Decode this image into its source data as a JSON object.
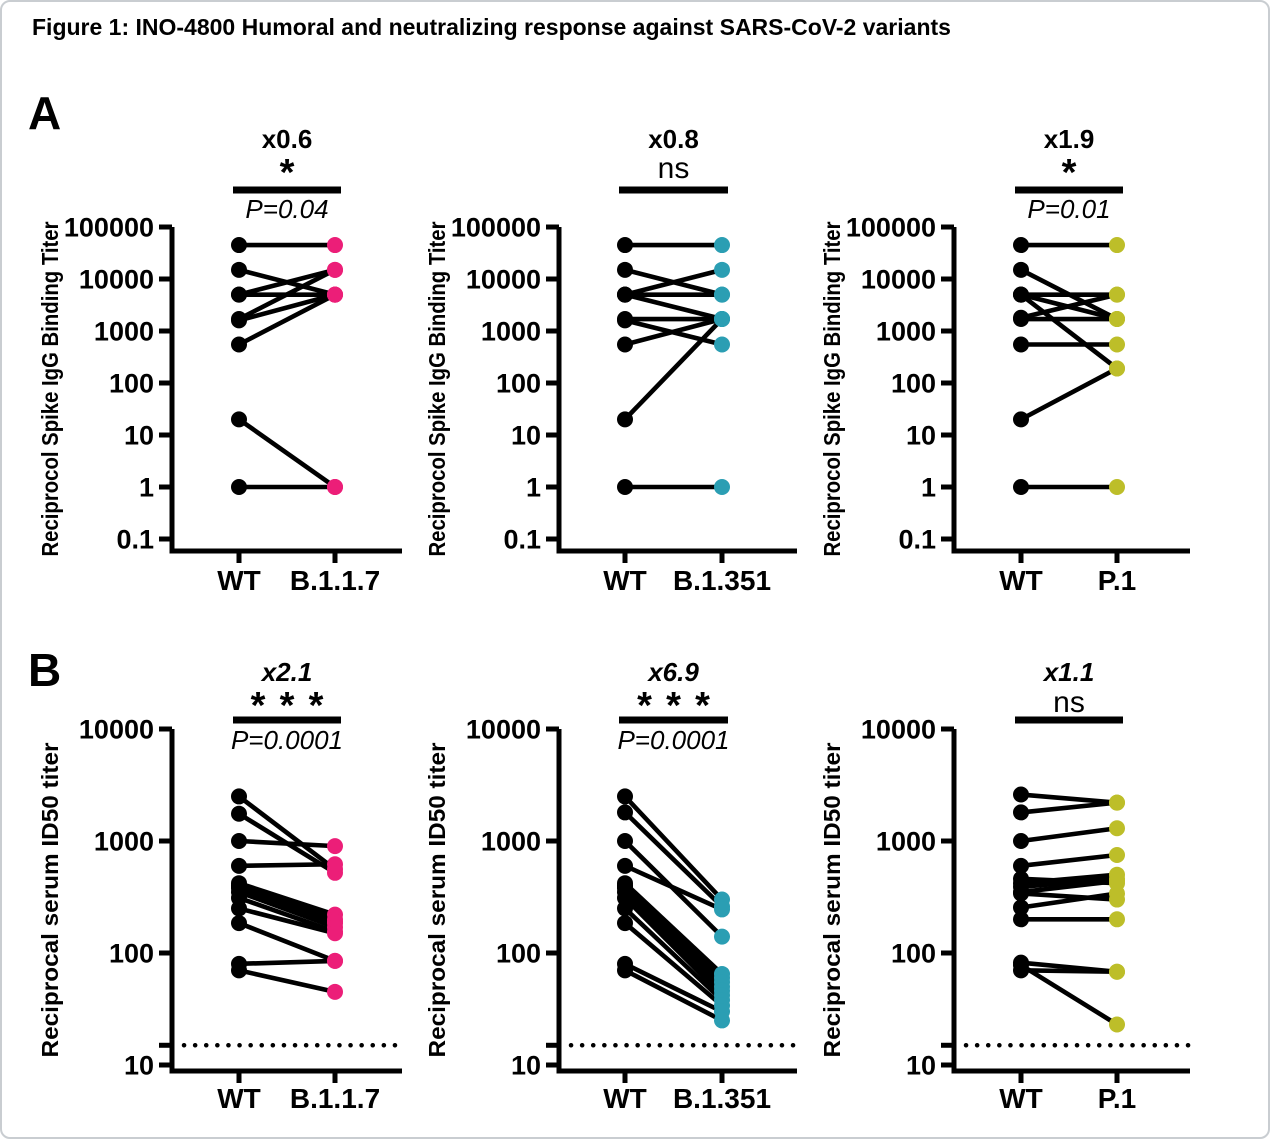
{
  "figure_title": "Figure 1: INO-4800 Humoral and neutralizing response against SARS-CoV-2 variants",
  "sections": {
    "a": "A",
    "b": "B"
  },
  "colors": {
    "wt_point": "#000000",
    "b117_point": "#EC1E78",
    "b1351_point": "#2B9EB3",
    "p1_point": "#BDBE29",
    "line": "#000000"
  },
  "chart_data": [
    {
      "id": "A-B.1.1.7",
      "row": "A",
      "type": "scatter",
      "subtype": "paired-dot-plot",
      "ylabel": "Reciprocol Spike IgG Binding Titer",
      "ylim": [
        0.1,
        100000
      ],
      "yticks": [
        100000,
        10000,
        1000,
        100,
        10,
        1,
        0.1
      ],
      "categories": [
        "WT",
        "B.1.1.7"
      ],
      "variant_color": "#EC1E78",
      "annotations": {
        "fold": "x0.6",
        "significance": "*",
        "p_value": "P=0.04"
      },
      "pairs": [
        [
          45000,
          45000
        ],
        [
          15000,
          5000
        ],
        [
          5000,
          15000
        ],
        [
          5000,
          5000
        ],
        [
          1700,
          15000
        ],
        [
          1600,
          5000
        ],
        [
          550,
          5000
        ],
        [
          20,
          1
        ],
        [
          1,
          1
        ]
      ],
      "lod": null
    },
    {
      "id": "A-B.1.351",
      "row": "A",
      "type": "scatter",
      "subtype": "paired-dot-plot",
      "ylabel": "Reciprocol Spike IgG Binding Titer",
      "ylim": [
        0.1,
        100000
      ],
      "yticks": [
        100000,
        10000,
        1000,
        100,
        10,
        1,
        0.1
      ],
      "categories": [
        "WT",
        "B.1.351"
      ],
      "variant_color": "#2B9EB3",
      "annotations": {
        "fold": "x0.8",
        "significance": "ns",
        "p_value": null
      },
      "pairs": [
        [
          45000,
          45000
        ],
        [
          15000,
          5000
        ],
        [
          5000,
          15000
        ],
        [
          5000,
          5000
        ],
        [
          5000,
          1700
        ],
        [
          1700,
          1700
        ],
        [
          1600,
          550
        ],
        [
          550,
          1700
        ],
        [
          20,
          1700
        ],
        [
          1,
          1
        ]
      ],
      "lod": null
    },
    {
      "id": "A-P.1",
      "row": "A",
      "type": "scatter",
      "subtype": "paired-dot-plot",
      "ylabel": "Reciprocol Spike IgG Binding Titer",
      "ylim": [
        0.1,
        100000
      ],
      "yticks": [
        100000,
        10000,
        1000,
        100,
        10,
        1,
        0.1
      ],
      "categories": [
        "WT",
        "P.1"
      ],
      "variant_color": "#BDBE29",
      "annotations": {
        "fold": "x1.9",
        "significance": "*",
        "p_value": "P=0.01"
      },
      "pairs": [
        [
          45000,
          45000
        ],
        [
          15000,
          1700
        ],
        [
          5000,
          5000
        ],
        [
          5000,
          1700
        ],
        [
          5000,
          190
        ],
        [
          1800,
          5000
        ],
        [
          1700,
          1700
        ],
        [
          550,
          550
        ],
        [
          20,
          190
        ],
        [
          1,
          1
        ]
      ],
      "lod": null
    },
    {
      "id": "B-B.1.1.7",
      "row": "B",
      "type": "scatter",
      "subtype": "paired-dot-plot",
      "ylabel": "Reciprocal serum ID50 titer",
      "ylim": [
        10,
        10000
      ],
      "yticks": [
        10000,
        1000,
        100,
        10
      ],
      "categories": [
        "WT",
        "B.1.1.7"
      ],
      "variant_color": "#EC1E78",
      "annotations": {
        "fold": "x2.1",
        "significance": "***",
        "p_value": "P=0.0001"
      },
      "pairs": [
        [
          2500,
          560
        ],
        [
          1750,
          520
        ],
        [
          1000,
          900
        ],
        [
          600,
          620
        ],
        [
          420,
          220
        ],
        [
          400,
          200
        ],
        [
          390,
          190
        ],
        [
          380,
          185
        ],
        [
          350,
          170
        ],
        [
          310,
          155
        ],
        [
          250,
          150
        ],
        [
          185,
          85
        ],
        [
          80,
          85
        ],
        [
          70,
          45
        ]
      ],
      "lod": 15
    },
    {
      "id": "B-B.1.351",
      "row": "B",
      "type": "scatter",
      "subtype": "paired-dot-plot",
      "ylabel": "Reciprocal serum ID50 titer",
      "ylim": [
        10,
        10000
      ],
      "yticks": [
        10000,
        1000,
        100,
        10
      ],
      "categories": [
        "WT",
        "B.1.351"
      ],
      "variant_color": "#2B9EB3",
      "annotations": {
        "fold": "x6.9",
        "significance": "***",
        "p_value": "P=0.0001"
      },
      "pairs": [
        [
          2500,
          300
        ],
        [
          1800,
          260
        ],
        [
          1000,
          140
        ],
        [
          600,
          245
        ],
        [
          420,
          65
        ],
        [
          400,
          60
        ],
        [
          390,
          55
        ],
        [
          380,
          50
        ],
        [
          350,
          46
        ],
        [
          310,
          42
        ],
        [
          250,
          38
        ],
        [
          185,
          34
        ],
        [
          80,
          30
        ],
        [
          70,
          25
        ]
      ],
      "lod": 15
    },
    {
      "id": "B-P.1",
      "row": "B",
      "type": "scatter",
      "subtype": "paired-dot-plot",
      "ylabel": "Reciprocal serum ID50 titer",
      "ylim": [
        10,
        10000
      ],
      "yticks": [
        10000,
        1000,
        100,
        10
      ],
      "categories": [
        "WT",
        "P.1"
      ],
      "variant_color": "#BDBE29",
      "annotations": {
        "fold": "x1.1",
        "significance": "ns",
        "p_value": null
      },
      "pairs": [
        [
          2600,
          2200
        ],
        [
          1800,
          2200
        ],
        [
          1000,
          1300
        ],
        [
          600,
          750
        ],
        [
          460,
          420
        ],
        [
          420,
          500
        ],
        [
          390,
          460
        ],
        [
          350,
          440
        ],
        [
          340,
          300
        ],
        [
          255,
          340
        ],
        [
          200,
          200
        ],
        [
          82,
          68
        ],
        [
          78,
          23
        ],
        [
          70,
          68
        ]
      ],
      "lod": 15
    }
  ]
}
